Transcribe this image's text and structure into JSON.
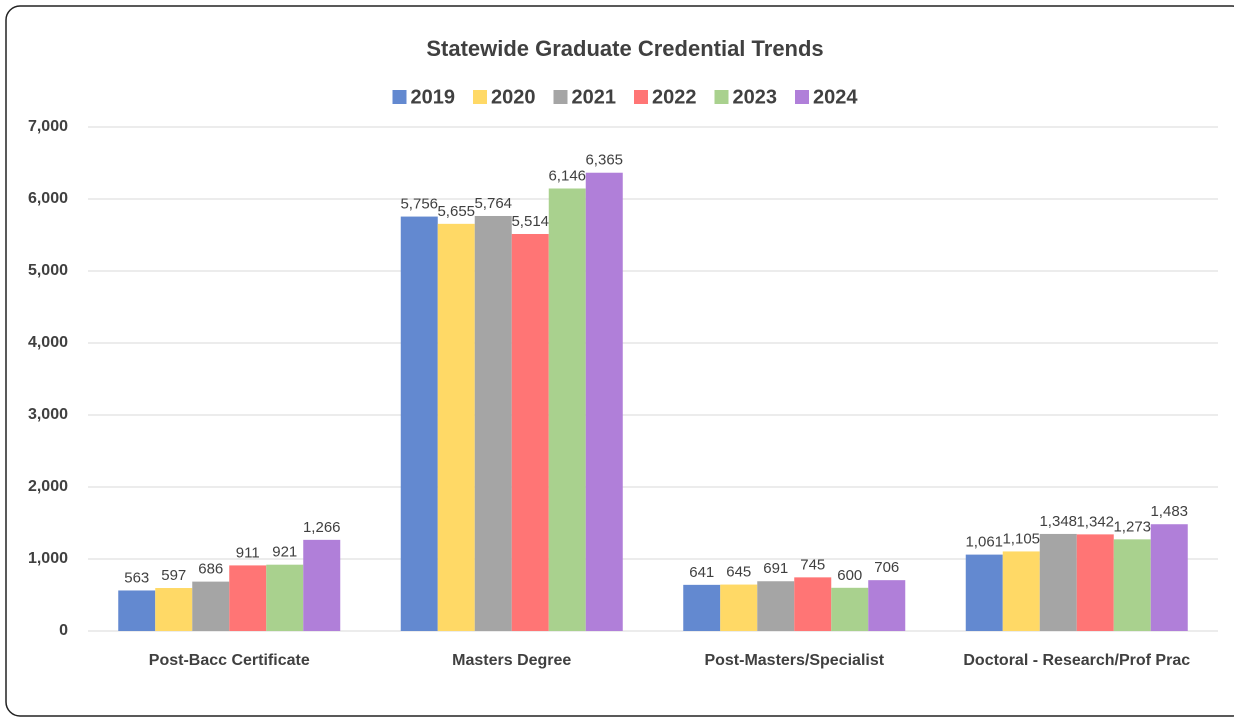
{
  "chart_data": {
    "type": "bar",
    "title": "Statewide Graduate Credential Trends",
    "categories": [
      "Post-Bacc Certificate",
      "Masters Degree",
      "Post-Masters/Specialist",
      "Doctoral - Research/Prof Prac"
    ],
    "series": [
      {
        "name": "2019",
        "color": "#6389d0",
        "values": [
          563,
          5756,
          641,
          1061
        ],
        "value_labels": [
          "563",
          "5,756",
          "641",
          "1,061"
        ]
      },
      {
        "name": "2020",
        "color": "#ffd966",
        "values": [
          597,
          5655,
          645,
          1105
        ],
        "value_labels": [
          "597",
          "5,655",
          "645",
          "1,105"
        ]
      },
      {
        "name": "2021",
        "color": "#a5a5a5",
        "values": [
          686,
          5764,
          691,
          1348
        ],
        "value_labels": [
          "686",
          "5,764",
          "691",
          "1,348"
        ]
      },
      {
        "name": "2022",
        "color": "#ff7575",
        "values": [
          911,
          5514,
          745,
          1342
        ],
        "value_labels": [
          "911",
          "5,514",
          "745",
          "1,342"
        ]
      },
      {
        "name": "2023",
        "color": "#a9d18e",
        "values": [
          921,
          6146,
          600,
          1273
        ],
        "value_labels": [
          "921",
          "6,146",
          "600",
          "1,273"
        ]
      },
      {
        "name": "2024",
        "color": "#b07fd9",
        "values": [
          1266,
          6365,
          706,
          1483
        ],
        "value_labels": [
          "1,266",
          "6,365",
          "706",
          "1,483"
        ]
      }
    ],
    "ylim": [
      0,
      7000
    ],
    "yticks": [
      0,
      {
        "value": 1000,
        "label": "1,000"
      },
      {
        "value": 2000,
        "label": "2,000"
      },
      {
        "value": 3000,
        "label": "3,000"
      },
      {
        "value": 4000,
        "label": "4,000"
      },
      {
        "value": 5000,
        "label": "5,000"
      },
      {
        "value": 6000,
        "label": "6,000"
      },
      {
        "value": 7000,
        "label": "7,000"
      }
    ],
    "grid": true,
    "legend": "top"
  }
}
